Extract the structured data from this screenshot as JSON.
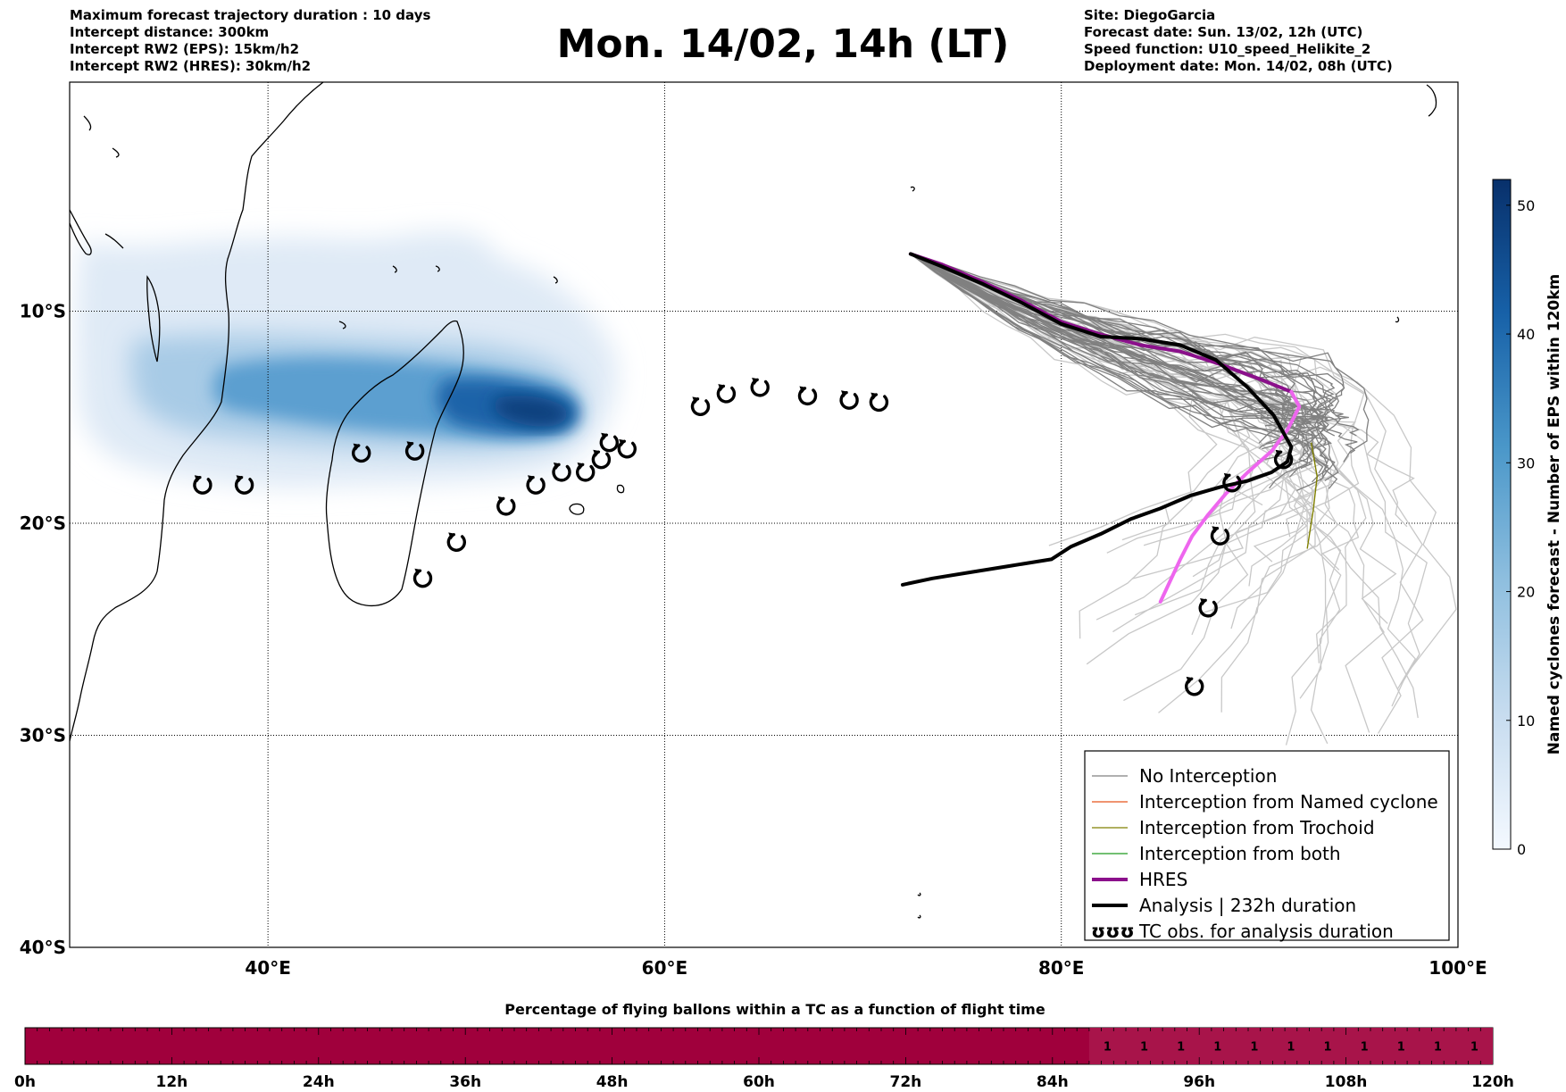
{
  "header_left": [
    "Maximum forecast trajectory duration : 10 days",
    "Intercept distance: 300km",
    "Intercept RW2 (EPS):  15km/h2",
    "Intercept RW2 (HRES): 30km/h2"
  ],
  "header_right": [
    "Site: DiegoGarcia",
    "Forecast date: Sun. 13/02, 12h (UTC)",
    "Speed function: U10_speed_Helikite_2",
    "Deployment date: Mon. 14/02, 08h (UTC)"
  ],
  "title": "Mon. 14/02, 14h (LT)",
  "colors": {
    "no_interception": "#808080",
    "named": "#e8551a",
    "trochoid": "#808000",
    "both": "#1e9a1e",
    "hres": "#8b108b",
    "hres_track": "#ee66ee",
    "analysis": "#000000",
    "light_tracks": "#c8c8c8",
    "bar": "#a0003c",
    "bar_light": "#a8144a"
  },
  "chart_data": [
    {
      "type": "map",
      "x_ticks": [
        "40°E",
        "60°E",
        "80°E",
        "100°E"
      ],
      "x_tick_values": [
        40,
        60,
        80,
        100
      ],
      "y_ticks": [
        "10°S",
        "20°S",
        "30°S",
        "40°S"
      ],
      "y_tick_values": [
        -10,
        -20,
        -30,
        -40
      ],
      "xlim": [
        30,
        100
      ],
      "ylim": [
        -40,
        0.8
      ],
      "grid": true,
      "legend_position": "bottom-right",
      "legend": [
        {
          "label": "No Interception",
          "style": "no_interception"
        },
        {
          "label": "Interception from Named cyclone",
          "style": "named"
        },
        {
          "label": "Interception from Trochoid",
          "style": "trochoid"
        },
        {
          "label": "Interception from both",
          "style": "both"
        },
        {
          "label": "HRES",
          "style": "hres"
        },
        {
          "label": "Analysis | 232h duration",
          "style": "analysis"
        },
        {
          "label": "TC obs. for analysis duration",
          "style": "tc_obs",
          "glyph": "ʊʊʊ"
        }
      ],
      "start_point": [
        72.4,
        -7.3
      ],
      "analysis_track": [
        [
          72.4,
          -7.3
        ],
        [
          74,
          -7.9
        ],
        [
          76,
          -8.7
        ],
        [
          78,
          -9.6
        ],
        [
          80,
          -10.6
        ],
        [
          82,
          -11.2
        ],
        [
          84,
          -11.3
        ],
        [
          86,
          -11.6
        ],
        [
          87.8,
          -12.3
        ],
        [
          89.4,
          -13.6
        ],
        [
          90.7,
          -14.9
        ],
        [
          91.6,
          -16.4
        ],
        [
          91.4,
          -17.1
        ],
        [
          90.6,
          -17.6
        ],
        [
          89.4,
          -18
        ],
        [
          88,
          -18.3
        ],
        [
          86.5,
          -18.7
        ],
        [
          85,
          -19.3
        ],
        [
          83.5,
          -19.8
        ],
        [
          82,
          -20.5
        ],
        [
          80.5,
          -21.1
        ],
        [
          79.5,
          -21.7
        ],
        [
          77.5,
          -22
        ],
        [
          75.5,
          -22.3
        ],
        [
          73.5,
          -22.6
        ],
        [
          72,
          -22.9
        ]
      ],
      "hres_track": [
        [
          72.4,
          -7.3
        ],
        [
          74,
          -7.8
        ],
        [
          76,
          -8.6
        ],
        [
          78,
          -9.5
        ],
        [
          80,
          -10.5
        ],
        [
          82,
          -11.1
        ],
        [
          84,
          -11.6
        ],
        [
          86,
          -11.9
        ],
        [
          88,
          -12.5
        ],
        [
          90,
          -13.2
        ],
        [
          91.6,
          -13.8
        ],
        [
          92,
          -14.5
        ],
        [
          91.4,
          -15.6
        ],
        [
          90.6,
          -16.6
        ],
        [
          89.4,
          -17.6
        ],
        [
          88.3,
          -18.6
        ],
        [
          87.4,
          -19.6
        ],
        [
          86.6,
          -20.6
        ],
        [
          86,
          -21.7
        ],
        [
          85.5,
          -22.7
        ],
        [
          85,
          -23.7
        ]
      ],
      "tc_obs": [
        [
          36.7,
          -18.2
        ],
        [
          38.8,
          -18.2
        ],
        [
          44.7,
          -16.7
        ],
        [
          47.4,
          -16.6
        ],
        [
          52,
          -19.2
        ],
        [
          49.5,
          -20.9
        ],
        [
          47.8,
          -22.6
        ],
        [
          53.5,
          -18.2
        ],
        [
          54.8,
          -17.6
        ],
        [
          56,
          -17.6
        ],
        [
          56.8,
          -17
        ],
        [
          57.2,
          -16.2
        ],
        [
          58.1,
          -16.5
        ],
        [
          61.8,
          -14.5
        ],
        [
          63.1,
          -13.9
        ],
        [
          64.8,
          -13.6
        ],
        [
          67.2,
          -14
        ],
        [
          69.3,
          -14.2
        ],
        [
          70.8,
          -14.3
        ],
        [
          91.2,
          -17
        ],
        [
          88.6,
          -18.1
        ],
        [
          88,
          -20.6
        ],
        [
          87.4,
          -24
        ],
        [
          86.7,
          -27.7
        ]
      ],
      "colorbar": {
        "label": "Named cyclones forecast - Number of EPS within 120km",
        "ticks": [
          0,
          10,
          20,
          30,
          40,
          50
        ],
        "range": [
          0,
          52
        ]
      }
    },
    {
      "type": "bar",
      "title": "Percentage of flying ballons within a TC as a function of flight time",
      "x_ticks": [
        "0h",
        "12h",
        "24h",
        "36h",
        "48h",
        "60h",
        "72h",
        "84h",
        "96h",
        "108h",
        "120h"
      ],
      "x_tick_values": [
        0,
        12,
        24,
        36,
        48,
        60,
        72,
        84,
        96,
        108,
        120
      ],
      "bins_hours": [
        87,
        90,
        93,
        96,
        99,
        102,
        105,
        108,
        111,
        114,
        117
      ],
      "bin_values": [
        1,
        1,
        1,
        1,
        1,
        1,
        1,
        1,
        1,
        1,
        1
      ],
      "bin_labels": [
        "1",
        "1",
        "1",
        "1",
        "1",
        "1",
        "1",
        "1",
        "1",
        "1",
        "1"
      ],
      "xlim": [
        0,
        120
      ]
    }
  ]
}
